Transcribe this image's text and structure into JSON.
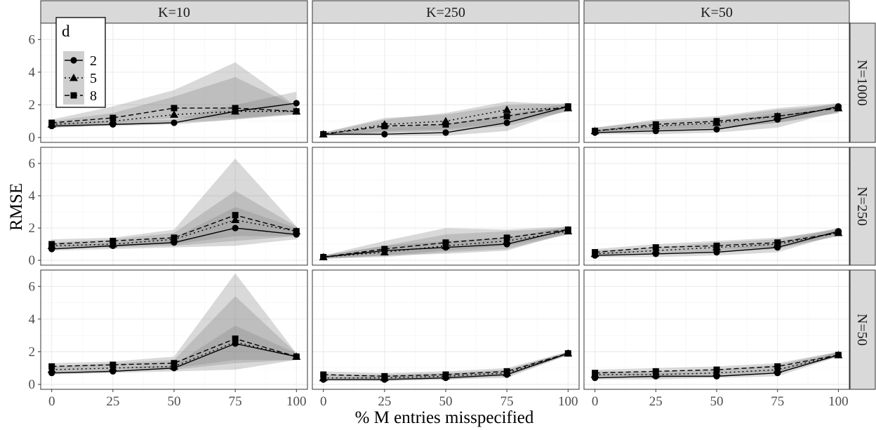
{
  "chart_data": {
    "type": "line",
    "xlabel": "% M entries misspecified",
    "ylabel": "RMSE",
    "x": [
      0,
      25,
      50,
      75,
      100
    ],
    "x_ticks": [
      "0",
      "25",
      "50",
      "75",
      "100"
    ],
    "y_ticks": [
      "0",
      "2",
      "4",
      "6"
    ],
    "xlim": [
      0,
      100
    ],
    "ylim": [
      0,
      7
    ],
    "grid": true,
    "col_labels": [
      "K=10",
      "K=250",
      "K=50"
    ],
    "row_labels": [
      "N=1000",
      "N=250",
      "N=50"
    ],
    "legend": {
      "title": "d",
      "position": "top-left",
      "entries": [
        {
          "label": "2",
          "marker": "circle",
          "linestyle": "solid"
        },
        {
          "label": "5",
          "marker": "triangle",
          "linestyle": "dotted"
        },
        {
          "label": "8",
          "marker": "square",
          "linestyle": "dashed"
        }
      ]
    },
    "colors": {
      "line": "#000000",
      "ribbon": "#808080",
      "strip": "#d9d9d9"
    },
    "panels": [
      {
        "row": 0,
        "col": 0,
        "series": [
          {
            "name": "2",
            "values": [
              0.7,
              0.8,
              0.9,
              1.6,
              2.1
            ],
            "lower": [
              0.6,
              0.7,
              0.8,
              1.1,
              1.5
            ],
            "upper": [
              0.9,
              1.0,
              1.1,
              2.0,
              2.8
            ]
          },
          {
            "name": "5",
            "values": [
              0.8,
              1.0,
              1.4,
              1.6,
              1.6
            ],
            "lower": [
              0.6,
              0.8,
              0.9,
              1.1,
              1.4
            ],
            "upper": [
              1.0,
              1.5,
              2.5,
              3.7,
              1.9
            ]
          },
          {
            "name": "8",
            "values": [
              0.9,
              1.2,
              1.8,
              1.8,
              1.6
            ],
            "lower": [
              0.7,
              0.9,
              1.2,
              1.2,
              1.4
            ],
            "upper": [
              1.1,
              1.9,
              2.9,
              4.6,
              1.9
            ]
          }
        ]
      },
      {
        "row": 0,
        "col": 1,
        "series": [
          {
            "name": "2",
            "values": [
              0.2,
              0.2,
              0.3,
              0.9,
              1.9
            ],
            "lower": [
              0.1,
              0.1,
              0.1,
              0.4,
              1.7
            ],
            "upper": [
              0.3,
              0.6,
              0.8,
              1.4,
              2.1
            ]
          },
          {
            "name": "5",
            "values": [
              0.2,
              0.8,
              1.0,
              1.7,
              1.8
            ],
            "lower": [
              0.1,
              0.4,
              0.5,
              0.9,
              1.6
            ],
            "upper": [
              0.3,
              1.1,
              1.5,
              2.2,
              2.0
            ]
          },
          {
            "name": "8",
            "values": [
              0.2,
              0.7,
              0.8,
              1.3,
              1.9
            ],
            "lower": [
              0.1,
              0.3,
              0.4,
              0.7,
              1.6
            ],
            "upper": [
              0.3,
              1.2,
              1.4,
              2.0,
              2.1
            ]
          }
        ]
      },
      {
        "row": 0,
        "col": 2,
        "series": [
          {
            "name": "2",
            "values": [
              0.3,
              0.4,
              0.5,
              1.1,
              1.9
            ],
            "lower": [
              0.2,
              0.2,
              0.3,
              0.6,
              1.6
            ],
            "upper": [
              0.5,
              0.7,
              0.9,
              1.5,
              2.1
            ]
          },
          {
            "name": "5",
            "values": [
              0.4,
              0.7,
              0.9,
              1.3,
              1.8
            ],
            "lower": [
              0.3,
              0.4,
              0.5,
              0.9,
              1.5
            ],
            "upper": [
              0.6,
              1.0,
              1.2,
              1.7,
              2.0
            ]
          },
          {
            "name": "8",
            "values": [
              0.4,
              0.8,
              1.0,
              1.3,
              1.8
            ],
            "lower": [
              0.3,
              0.5,
              0.6,
              0.9,
              1.5
            ],
            "upper": [
              0.6,
              1.1,
              1.3,
              1.8,
              2.1
            ]
          }
        ]
      },
      {
        "row": 1,
        "col": 0,
        "series": [
          {
            "name": "2",
            "values": [
              0.7,
              0.9,
              1.1,
              2.0,
              1.6
            ],
            "lower": [
              0.6,
              0.7,
              0.8,
              0.9,
              1.3
            ],
            "upper": [
              0.9,
              1.1,
              1.4,
              3.3,
              2.0
            ]
          },
          {
            "name": "5",
            "values": [
              0.9,
              1.0,
              1.3,
              2.5,
              1.8
            ],
            "lower": [
              0.7,
              0.8,
              0.9,
              1.2,
              1.5
            ],
            "upper": [
              1.1,
              1.3,
              1.7,
              4.3,
              2.1
            ]
          },
          {
            "name": "8",
            "values": [
              1.0,
              1.2,
              1.4,
              2.8,
              1.8
            ],
            "lower": [
              0.8,
              0.9,
              1.0,
              1.5,
              1.5
            ],
            "upper": [
              1.3,
              1.4,
              1.9,
              6.3,
              2.1
            ]
          }
        ]
      },
      {
        "row": 1,
        "col": 1,
        "series": [
          {
            "name": "2",
            "values": [
              0.2,
              0.6,
              0.8,
              1.0,
              1.9
            ],
            "lower": [
              0.1,
              0.3,
              0.4,
              0.6,
              1.7
            ],
            "upper": [
              0.3,
              0.9,
              1.2,
              1.4,
              2.1
            ]
          },
          {
            "name": "5",
            "values": [
              0.2,
              0.5,
              0.9,
              1.2,
              1.8
            ],
            "lower": [
              0.1,
              0.2,
              0.5,
              0.7,
              1.6
            ],
            "upper": [
              0.3,
              0.9,
              1.6,
              1.8,
              2.0
            ]
          },
          {
            "name": "8",
            "values": [
              0.2,
              0.7,
              1.1,
              1.4,
              1.9
            ],
            "lower": [
              0.1,
              0.3,
              0.6,
              0.9,
              1.6
            ],
            "upper": [
              0.3,
              1.2,
              2.0,
              1.9,
              2.1
            ]
          }
        ]
      },
      {
        "row": 1,
        "col": 2,
        "series": [
          {
            "name": "2",
            "values": [
              0.3,
              0.4,
              0.5,
              0.8,
              1.8
            ],
            "lower": [
              0.2,
              0.2,
              0.3,
              0.5,
              1.6
            ],
            "upper": [
              0.5,
              0.6,
              0.7,
              1.1,
              2.0
            ]
          },
          {
            "name": "5",
            "values": [
              0.4,
              0.6,
              0.8,
              1.0,
              1.7
            ],
            "lower": [
              0.3,
              0.4,
              0.5,
              0.7,
              1.5
            ],
            "upper": [
              0.6,
              0.8,
              1.1,
              1.3,
              2.0
            ]
          },
          {
            "name": "8",
            "values": [
              0.5,
              0.8,
              0.9,
              1.1,
              1.7
            ],
            "lower": [
              0.3,
              0.6,
              0.7,
              0.8,
              1.5
            ],
            "upper": [
              0.7,
              1.0,
              1.2,
              1.4,
              1.9
            ]
          }
        ]
      },
      {
        "row": 2,
        "col": 0,
        "series": [
          {
            "name": "2",
            "values": [
              0.7,
              0.8,
              1.0,
              2.5,
              1.7
            ],
            "lower": [
              0.6,
              0.7,
              0.8,
              0.9,
              1.5
            ],
            "upper": [
              0.9,
              1.0,
              1.2,
              3.6,
              1.9
            ]
          },
          {
            "name": "5",
            "values": [
              0.9,
              1.0,
              1.1,
              2.6,
              1.7
            ],
            "lower": [
              0.7,
              0.8,
              0.9,
              1.3,
              1.5
            ],
            "upper": [
              1.1,
              1.3,
              1.5,
              5.4,
              1.9
            ]
          },
          {
            "name": "8",
            "values": [
              1.1,
              1.2,
              1.3,
              2.8,
              1.7
            ],
            "lower": [
              0.9,
              1.0,
              1.0,
              1.5,
              1.5
            ],
            "upper": [
              1.3,
              1.4,
              1.7,
              6.8,
              1.9
            ]
          }
        ]
      },
      {
        "row": 2,
        "col": 1,
        "series": [
          {
            "name": "2",
            "values": [
              0.3,
              0.3,
              0.4,
              0.6,
              1.9
            ],
            "lower": [
              0.2,
              0.2,
              0.3,
              0.4,
              1.8
            ],
            "upper": [
              0.4,
              0.5,
              0.6,
              0.8,
              2.0
            ]
          },
          {
            "name": "5",
            "values": [
              0.4,
              0.4,
              0.5,
              0.7,
              1.9
            ],
            "lower": [
              0.3,
              0.3,
              0.3,
              0.5,
              1.8
            ],
            "upper": [
              0.6,
              0.6,
              0.7,
              0.9,
              2.0
            ]
          },
          {
            "name": "8",
            "values": [
              0.6,
              0.5,
              0.6,
              0.8,
              1.9
            ],
            "lower": [
              0.4,
              0.3,
              0.4,
              0.6,
              1.8
            ],
            "upper": [
              0.8,
              0.7,
              0.8,
              1.0,
              2.0
            ]
          }
        ]
      },
      {
        "row": 2,
        "col": 2,
        "series": [
          {
            "name": "2",
            "values": [
              0.4,
              0.5,
              0.5,
              0.7,
              1.8
            ],
            "lower": [
              0.3,
              0.3,
              0.4,
              0.5,
              1.7
            ],
            "upper": [
              0.6,
              0.7,
              0.7,
              0.9,
              2.0
            ]
          },
          {
            "name": "5",
            "values": [
              0.6,
              0.6,
              0.7,
              0.9,
              1.8
            ],
            "lower": [
              0.4,
              0.4,
              0.5,
              0.7,
              1.7
            ],
            "upper": [
              0.8,
              0.8,
              0.9,
              1.2,
              2.0
            ]
          },
          {
            "name": "8",
            "values": [
              0.7,
              0.8,
              0.9,
              1.1,
              1.8
            ],
            "lower": [
              0.5,
              0.6,
              0.7,
              0.8,
              1.7
            ],
            "upper": [
              0.9,
              1.0,
              1.1,
              1.3,
              2.0
            ]
          }
        ]
      }
    ]
  }
}
